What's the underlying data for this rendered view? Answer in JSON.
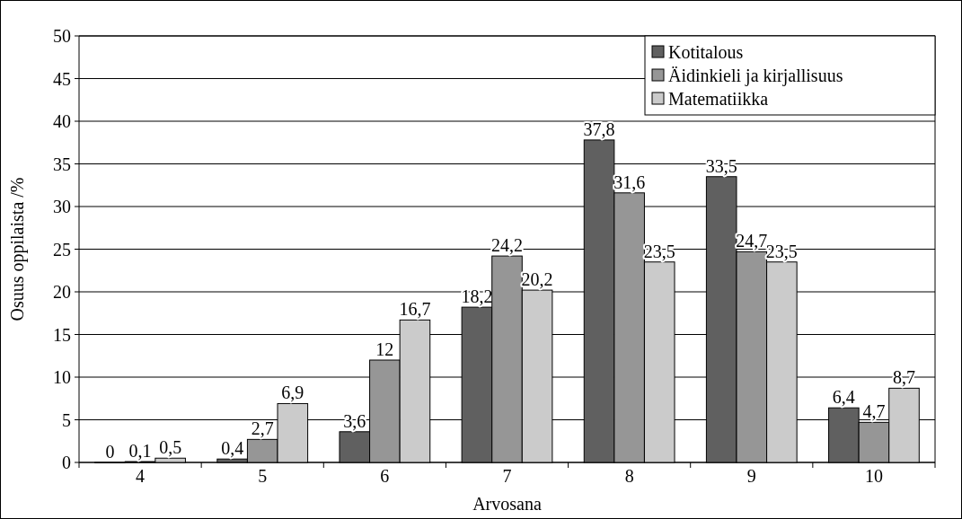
{
  "chart_data": {
    "type": "bar",
    "xlabel": "Arvosana",
    "ylabel": "Osuus oppilaista /%",
    "categories": [
      "4",
      "5",
      "6",
      "7",
      "8",
      "9",
      "10"
    ],
    "series": [
      {
        "name": "Kotitalous",
        "color": "#606060",
        "values": [
          0,
          0.4,
          3.6,
          18.2,
          37.8,
          33.5,
          6.4
        ],
        "value_labels": [
          "0",
          "0,4",
          "3,6",
          "18,2",
          "37,8",
          "33,5",
          "6,4"
        ]
      },
      {
        "name": "Äidinkieli ja kirjallisuus",
        "color": "#969696",
        "values": [
          0.1,
          2.7,
          12,
          24.2,
          31.6,
          24.7,
          4.7
        ],
        "value_labels": [
          "0,1",
          "2,7",
          "12",
          "24,2",
          "31,6",
          "24,7",
          "4,7"
        ]
      },
      {
        "name": "Matematiikka",
        "color": "#cbcbcb",
        "values": [
          0.5,
          6.9,
          16.7,
          20.2,
          23.5,
          23.5,
          8.7
        ],
        "value_labels": [
          "0,5",
          "6,9",
          "16,7",
          "20,2",
          "23,5",
          "23,5",
          "8,7"
        ]
      }
    ],
    "ylim": [
      0,
      50
    ],
    "yticks": [
      0,
      5,
      10,
      15,
      20,
      25,
      30,
      35,
      40,
      45,
      50
    ],
    "grid": "y",
    "legend": "top right"
  }
}
